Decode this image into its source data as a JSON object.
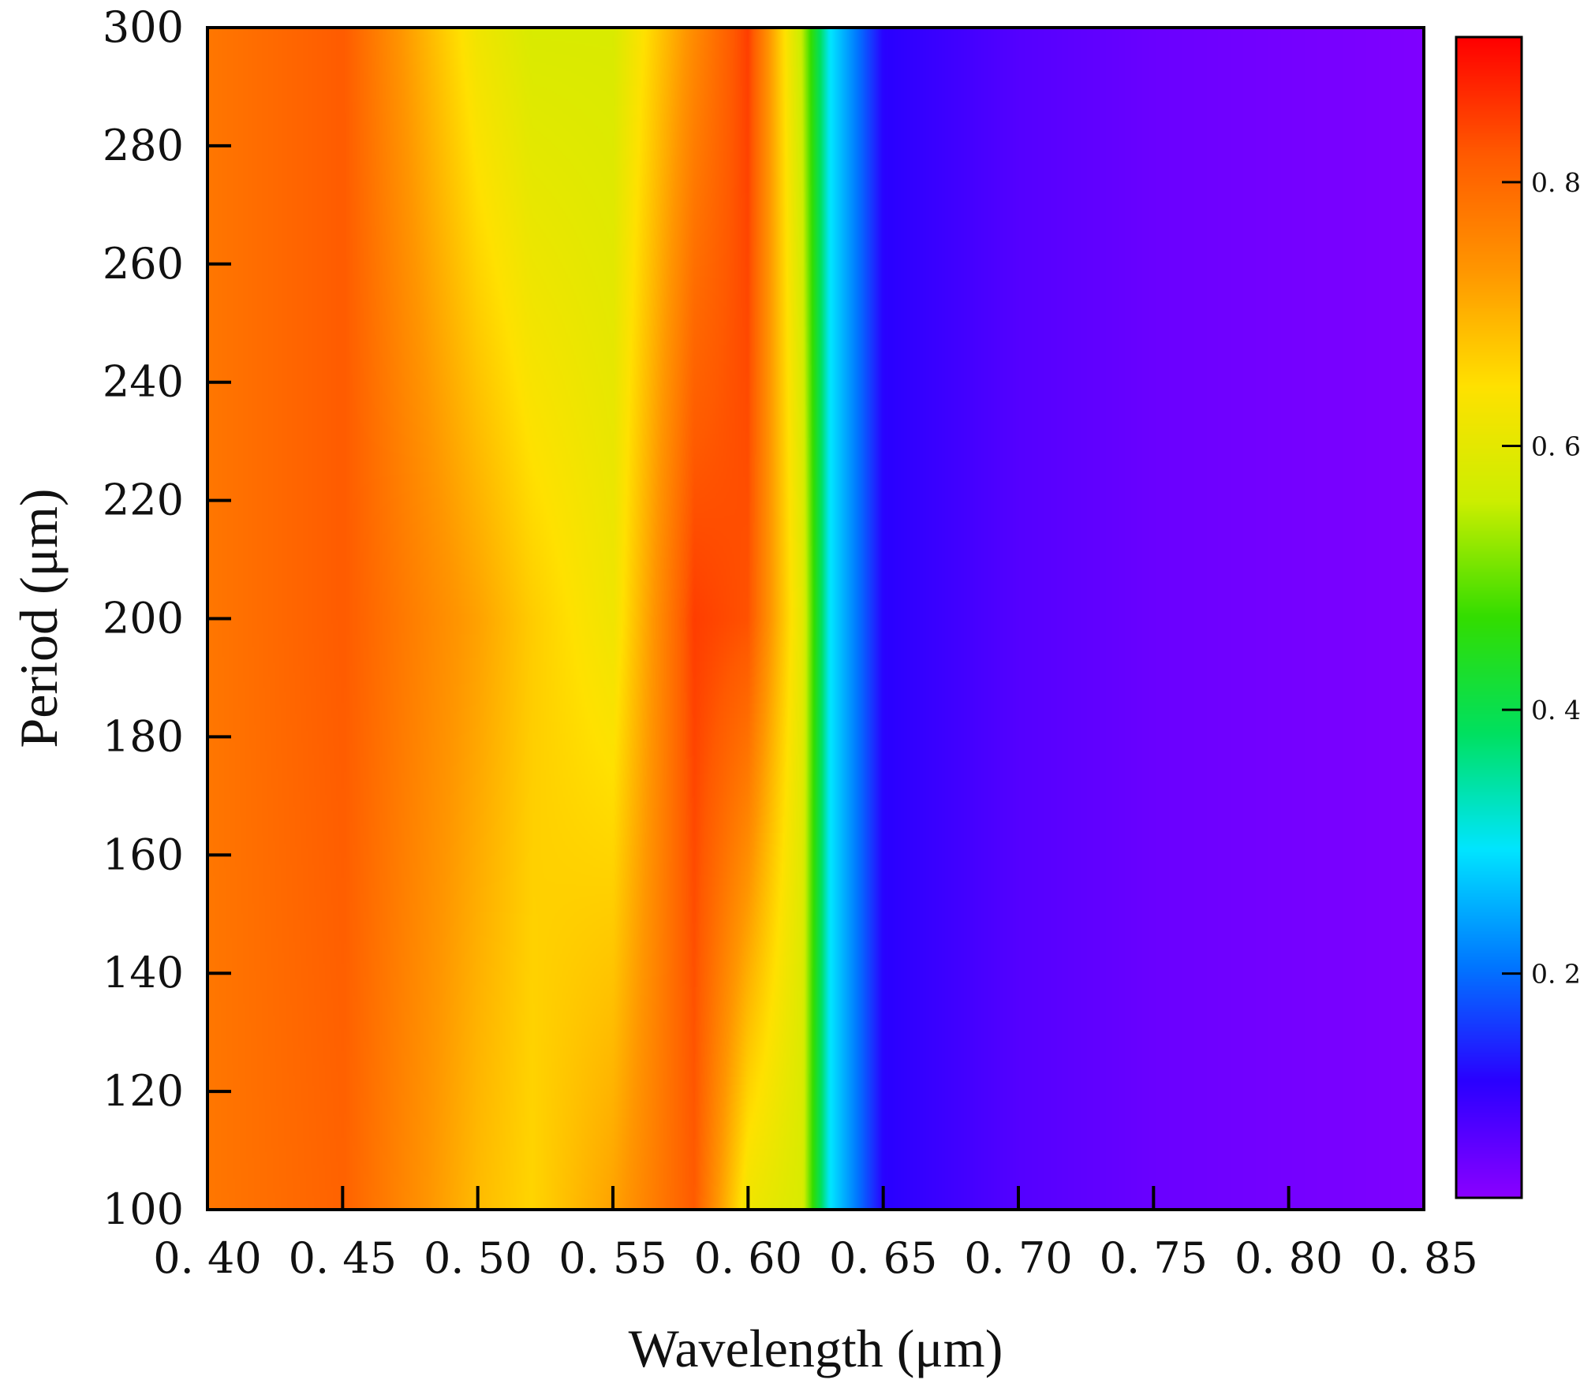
{
  "chart_data": {
    "type": "heatmap",
    "title": "",
    "xlabel": "Wavelength (μm)",
    "ylabel": "Period (μm)",
    "xlim": [
      0.4,
      0.85
    ],
    "ylim": [
      100,
      300
    ],
    "x_ticks": [
      "0. 40",
      "0. 45",
      "0. 50",
      "0. 55",
      "0. 60",
      "0. 65",
      "0. 70",
      "0. 75",
      "0. 80",
      "0. 85"
    ],
    "y_ticks": [
      "100",
      "120",
      "140",
      "160",
      "180",
      "200",
      "220",
      "240",
      "260",
      "280",
      "300"
    ],
    "colorbar": {
      "range": [
        0.03,
        0.91
      ],
      "ticks": [
        "0. 2",
        "0. 4",
        "0. 6",
        "0. 8"
      ],
      "colormap": [
        "#8a00ff",
        "#2a00ff",
        "#0077ff",
        "#00e5ff",
        "#00e060",
        "#33dd00",
        "#ccee00",
        "#ffe100",
        "#ff9600",
        "#ff5a00",
        "#ff0000"
      ]
    },
    "description_values": {
      "x": [
        0.4,
        0.45,
        0.5,
        0.52,
        0.55,
        0.58,
        0.6,
        0.62,
        0.63,
        0.65,
        0.7,
        0.75,
        0.8,
        0.85
      ],
      "y": [
        100,
        200,
        300
      ],
      "z": [
        [
          0.78,
          0.81,
          0.69,
          0.66,
          0.72,
          0.82,
          0.62,
          0.58,
          0.3,
          0.12,
          0.08,
          0.06,
          0.05,
          0.04
        ],
        [
          0.78,
          0.82,
          0.72,
          0.67,
          0.62,
          0.85,
          0.83,
          0.6,
          0.3,
          0.12,
          0.08,
          0.06,
          0.05,
          0.04
        ],
        [
          0.78,
          0.82,
          0.62,
          0.58,
          0.58,
          0.75,
          0.85,
          0.55,
          0.3,
          0.12,
          0.08,
          0.06,
          0.05,
          0.04
        ]
      ]
    }
  }
}
